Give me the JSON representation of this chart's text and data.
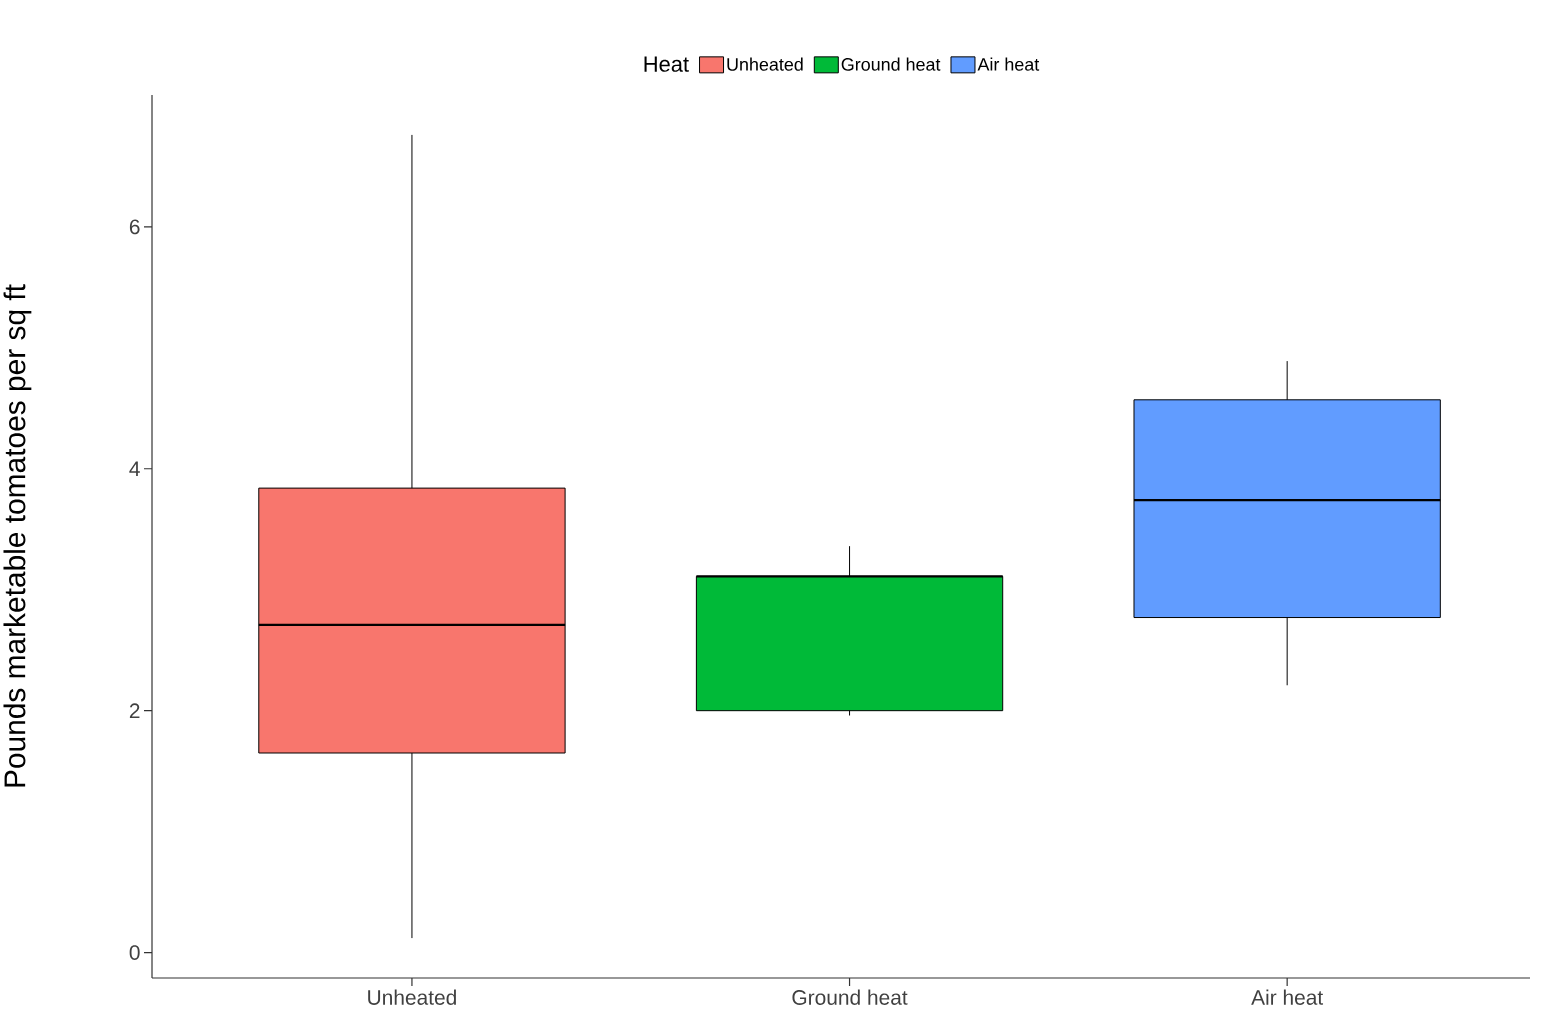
{
  "chart_data": {
    "type": "box",
    "ylabel": "Pounds marketable tomatoes per sq ft",
    "legend_title": "Heat",
    "legend": "top",
    "categories": [
      "Unheated",
      "Ground heat",
      "Air heat"
    ],
    "series": [
      {
        "name": "Unheated",
        "color": "#f8766d",
        "boxes": [
          {
            "low": 0.12,
            "q1": 1.65,
            "median": 2.71,
            "q3": 3.84,
            "high": 6.76
          },
          null,
          null
        ]
      },
      {
        "name": "Ground heat",
        "color": "#00ba38",
        "boxes": [
          null,
          {
            "low": 1.96,
            "q1": 2.0,
            "median": 3.11,
            "q3": 3.11,
            "high": 3.36
          },
          null
        ]
      },
      {
        "name": "Air heat",
        "color": "#619cff",
        "boxes": [
          null,
          null,
          {
            "low": 2.21,
            "q1": 2.77,
            "median": 3.74,
            "q3": 4.57,
            "high": 4.89
          }
        ]
      }
    ],
    "ylim": [
      -0.21,
      7.09
    ],
    "yticks": [
      0,
      2,
      4,
      6
    ],
    "grid": false
  }
}
